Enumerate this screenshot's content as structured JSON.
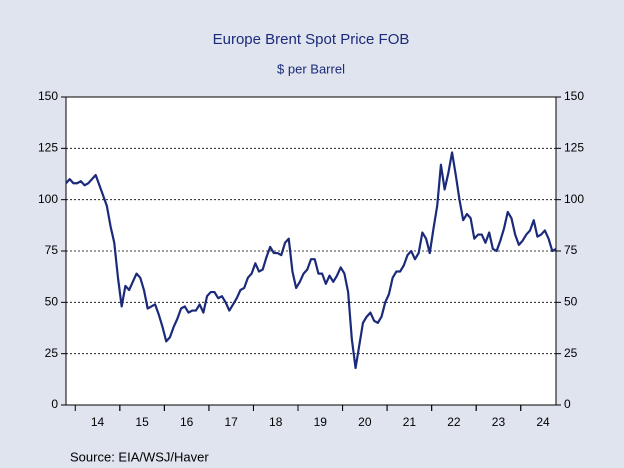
{
  "chart_data": {
    "type": "line",
    "title": "Europe Brent Spot Price FOB",
    "subtitle": "$ per Barrel",
    "source": "Source:  EIA/WSJ/Haver",
    "categories": [
      null,
      null,
      null,
      null,
      null,
      null,
      null,
      null,
      null,
      "14",
      null,
      null,
      null,
      null,
      null,
      null,
      null,
      null,
      null,
      null,
      null,
      "15",
      null,
      null,
      null,
      null,
      null,
      null,
      null,
      null,
      null,
      null,
      null,
      "16",
      null,
      null,
      null,
      null,
      null,
      null,
      null,
      null,
      null,
      null,
      null,
      "17",
      null,
      null,
      null,
      null,
      null,
      null,
      null,
      null,
      null,
      null,
      null,
      "18",
      null,
      null,
      null,
      null,
      null,
      null,
      null,
      null,
      null,
      null,
      null,
      "19",
      null,
      null,
      null,
      null,
      null,
      null,
      null,
      null,
      null,
      null,
      null,
      "20",
      null,
      null,
      null,
      null,
      null,
      null,
      null,
      null,
      null,
      null,
      null,
      "21",
      null,
      null,
      null,
      null,
      null,
      null,
      null,
      null,
      null,
      null,
      null,
      "22",
      null,
      null,
      null,
      null,
      null,
      null,
      null,
      null,
      null,
      null,
      null,
      "23",
      null,
      null,
      null,
      null,
      null,
      null,
      null,
      null,
      null,
      null,
      null,
      "24",
      null,
      null,
      null
    ],
    "values": [
      108,
      110,
      108,
      108,
      109,
      107,
      108,
      110,
      112,
      107,
      102,
      97,
      87,
      79,
      62,
      48,
      58,
      56,
      60,
      64,
      62,
      56,
      47,
      48,
      49,
      44,
      38,
      31,
      33,
      38,
      42,
      47,
      48,
      45,
      46,
      46,
      49,
      45,
      53,
      55,
      55,
      52,
      53,
      50,
      46,
      49,
      52,
      56,
      57,
      62,
      64,
      69,
      65,
      66,
      72,
      77,
      74,
      74,
      73,
      79,
      81,
      65,
      57,
      60,
      64,
      66,
      71,
      71,
      64,
      64,
      59,
      63,
      60,
      63,
      67,
      64,
      55,
      32,
      18,
      29,
      40,
      43,
      45,
      41,
      40,
      43,
      50,
      54,
      62,
      65,
      65,
      68,
      73,
      75,
      71,
      74,
      84,
      81,
      74,
      86,
      97,
      117,
      105,
      113,
      123,
      112,
      100,
      90,
      93,
      91,
      81,
      83,
      83,
      79,
      84,
      76,
      75,
      80,
      86,
      94,
      91,
      83,
      78,
      80,
      83,
      85,
      90,
      82,
      83,
      85,
      81,
      75,
      76
    ],
    "color": "#1c2a7a",
    "ylim": [
      0,
      150
    ],
    "yticks": [
      0,
      25,
      50,
      75,
      100,
      125,
      150
    ],
    "y2lim": [
      0,
      150
    ],
    "y2ticks": [
      0,
      25,
      50,
      75,
      100,
      125,
      150
    ],
    "grid": true
  }
}
